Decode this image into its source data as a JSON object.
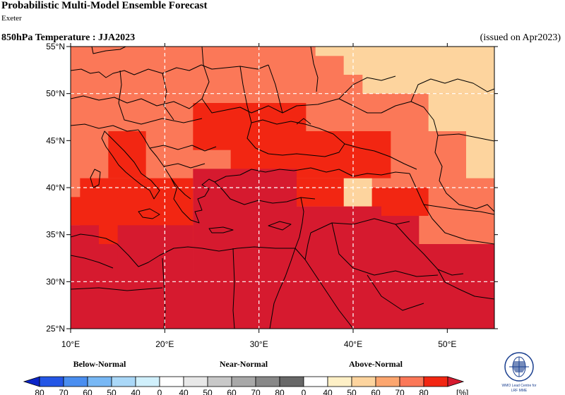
{
  "header": {
    "title": "Probabilistic Multi-Model Ensemble Forecast",
    "centre": "Exeter",
    "variable": "850hPa Temperature : JJA2023",
    "issued": "(issued on Apr2023)"
  },
  "map": {
    "lon_range": [
      10,
      55
    ],
    "lat_range": [
      25,
      55
    ],
    "lon_ticks": [
      {
        "value": 10,
        "label": "10°E"
      },
      {
        "value": 20,
        "label": "20°E"
      },
      {
        "value": 30,
        "label": "30°E"
      },
      {
        "value": 40,
        "label": "40°E"
      },
      {
        "value": 50,
        "label": "50°E"
      }
    ],
    "lat_ticks": [
      {
        "value": 55,
        "label": "55°N"
      },
      {
        "value": 50,
        "label": "50°N"
      },
      {
        "value": 45,
        "label": "45°N"
      },
      {
        "value": 40,
        "label": "40°N"
      },
      {
        "value": 35,
        "label": "35°N"
      },
      {
        "value": 30,
        "label": "30°N"
      },
      {
        "value": 25,
        "label": "25°N"
      }
    ],
    "grid_lines": {
      "lon": [
        20,
        30,
        40
      ],
      "lat": [
        50,
        40,
        30
      ]
    },
    "cells": [
      {
        "lon": [
          10,
          55
        ],
        "lat": [
          25,
          55
        ],
        "color": "#fb7858"
      },
      {
        "lon": [
          36,
          49
        ],
        "lat": [
          54,
          55
        ],
        "color": "#fdd49e"
      },
      {
        "lon": [
          39,
          55
        ],
        "lat": [
          52,
          55
        ],
        "color": "#fdd49e"
      },
      {
        "lon": [
          41,
          55
        ],
        "lat": [
          50,
          52
        ],
        "color": "#fdd49e"
      },
      {
        "lon": [
          48,
          55
        ],
        "lat": [
          46,
          50
        ],
        "color": "#fdd49e"
      },
      {
        "lon": [
          52,
          55
        ],
        "lat": [
          41,
          46
        ],
        "color": "#fdd49e"
      },
      {
        "lon": [
          39,
          42
        ],
        "lat": [
          38,
          41
        ],
        "color": "#fdd49e"
      },
      {
        "lon": [
          23,
          35
        ],
        "lat": [
          44,
          49
        ],
        "color": "#f22612"
      },
      {
        "lon": [
          27,
          44
        ],
        "lat": [
          41,
          46
        ],
        "color": "#f22612"
      },
      {
        "lon": [
          14,
          18
        ],
        "lat": [
          41,
          46
        ],
        "color": "#f22612"
      },
      {
        "lon": [
          11,
          23
        ],
        "lat": [
          34,
          41
        ],
        "color": "#f22612"
      },
      {
        "lon": [
          10,
          15
        ],
        "lat": [
          36,
          39
        ],
        "color": "#f22612"
      },
      {
        "lon": [
          33,
          39
        ],
        "lat": [
          38,
          41
        ],
        "color": "#f22612"
      },
      {
        "lon": [
          42,
          48
        ],
        "lat": [
          37,
          40
        ],
        "color": "#f22612"
      },
      {
        "lon": [
          10,
          55
        ],
        "lat": [
          25,
          31
        ],
        "color": "#d61a2f"
      },
      {
        "lon": [
          10,
          23
        ],
        "lat": [
          31,
          34
        ],
        "color": "#d61a2f"
      },
      {
        "lon": [
          10,
          13
        ],
        "lat": [
          34,
          36
        ],
        "color": "#d61a2f"
      },
      {
        "lon": [
          15,
          23
        ],
        "lat": [
          31,
          36
        ],
        "color": "#d61a2f"
      },
      {
        "lon": [
          23,
          34
        ],
        "lat": [
          31,
          42
        ],
        "color": "#d61a2f"
      },
      {
        "lon": [
          34,
          43
        ],
        "lat": [
          31,
          38
        ],
        "color": "#d61a2f"
      },
      {
        "lon": [
          43,
          55
        ],
        "lat": [
          31,
          34
        ],
        "color": "#d61a2f"
      },
      {
        "lon": [
          43,
          47
        ],
        "lat": [
          34,
          37
        ],
        "color": "#d61a2f"
      }
    ]
  },
  "legend": {
    "categories": [
      {
        "label": "Below-Normal"
      },
      {
        "label": "Near-Normal"
      },
      {
        "label": "Above-Normal"
      }
    ],
    "colors": [
      "#2456e6",
      "#4a8ef0",
      "#78b8f5",
      "#aad8f8",
      "#d0f0fc",
      "#ffffff",
      "#e8e8e8",
      "#c8c8c8",
      "#a8a8a8",
      "#888888",
      "#686868",
      "#ffffff",
      "#fef0c6",
      "#fdd49e",
      "#fca66f",
      "#fb7858",
      "#f22612"
    ],
    "arrow_left_color": "#0b24c8",
    "arrow_right_color": "#d61a2f",
    "ticks": [
      "80",
      "70",
      "60",
      "50",
      "40",
      "0",
      "40",
      "50",
      "60",
      "70",
      "80",
      "0",
      "40",
      "50",
      "60",
      "70",
      "80"
    ],
    "units": "[%]"
  },
  "logo": {
    "line1": "WMO Lead Centre for",
    "line2": "LRF MME"
  }
}
